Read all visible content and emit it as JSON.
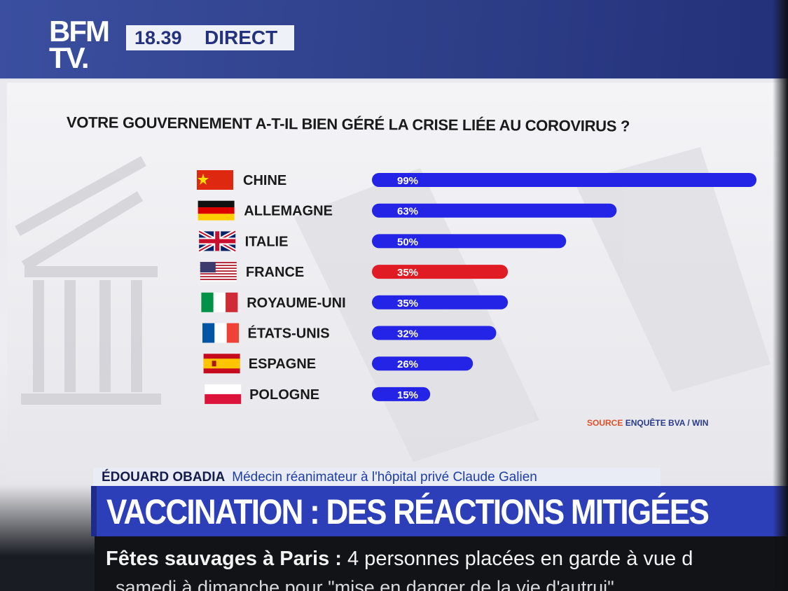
{
  "channel": {
    "logo_line1": "BFM",
    "logo_line2": "TV.",
    "time": "18.39",
    "status": "DIRECT"
  },
  "chart_data": {
    "type": "bar",
    "title": "VOTRE GOUVERNEMENT A-T-IL BIEN GÉRÉ LA CRISE LIÉE AU COROVIRUS ?",
    "categories": [
      "CHINE",
      "ALLEMAGNE",
      "ITALIE",
      "FRANCE",
      "ROYAUME-UNI",
      "ÉTATS-UNIS",
      "ESPAGNE",
      "POLOGNE"
    ],
    "values": [
      99,
      63,
      50,
      35,
      35,
      32,
      26,
      15
    ],
    "value_labels": [
      "99%",
      "63%",
      "50%",
      "35%",
      "35%",
      "32%",
      "26%",
      "15%"
    ],
    "flags": [
      "china-flag-icon",
      "germany-flag-icon",
      "uk-flag-icon",
      "usa-flag-icon",
      "italy-flag-icon",
      "france-flag-icon",
      "spain-flag-icon",
      "poland-flag-icon"
    ],
    "highlight_index": 3,
    "colors": {
      "bar": "#2424e6",
      "highlight": "#e11b24"
    },
    "xlim": [
      0,
      100
    ],
    "grid": false
  },
  "source": {
    "label": "SOURCE",
    "text": "ENQUÊTE BVA / WIN"
  },
  "lower_third": {
    "name": "ÉDOUARD OBADIA",
    "role": "Médecin réanimateur à l'hôpital privé Claude Galien",
    "headline": "VACCINATION : DES RÉACTIONS MITIGÉES"
  },
  "ticker": {
    "bold": "Fêtes sauvages à Paris",
    "sep": ":",
    "text": "4 personnes placées en garde à vue d",
    "line2": "samedi à dimanche pour \"mise en danger de la vie d'autrui\""
  }
}
